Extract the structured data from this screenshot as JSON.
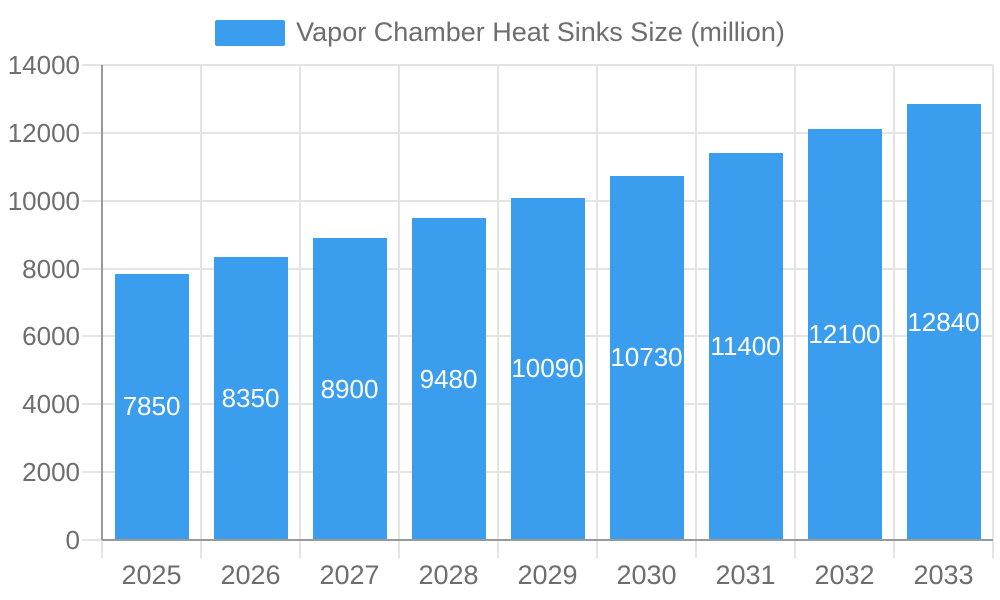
{
  "legend": {
    "label": "Vapor Chamber Heat Sinks Size (million)"
  },
  "colors": {
    "bar": "#3b9ded",
    "bar_value_label": "#ffffff",
    "axis_text": "#6e6e6e",
    "grid_line": "#e4e4e4",
    "axis_line": "#999999",
    "background": "#ffffff"
  },
  "chart_data": {
    "type": "bar",
    "title": "",
    "categories": [
      "2025",
      "2026",
      "2027",
      "2028",
      "2029",
      "2030",
      "2031",
      "2032",
      "2033"
    ],
    "series": [
      {
        "name": "Vapor Chamber Heat Sinks Size (million)",
        "values": [
          7850,
          8350,
          8900,
          9480,
          10090,
          10730,
          11400,
          12100,
          12840
        ]
      }
    ],
    "xlabel": "",
    "ylabel": "",
    "ylim": [
      0,
      14000
    ],
    "y_tick_step": 2000,
    "y_ticks": [
      0,
      2000,
      4000,
      6000,
      8000,
      10000,
      12000,
      14000
    ],
    "grid": "horizontal and vertical gridlines on",
    "legend_position": "top-center",
    "value_labels": "inside bars, vertically centered, white"
  }
}
